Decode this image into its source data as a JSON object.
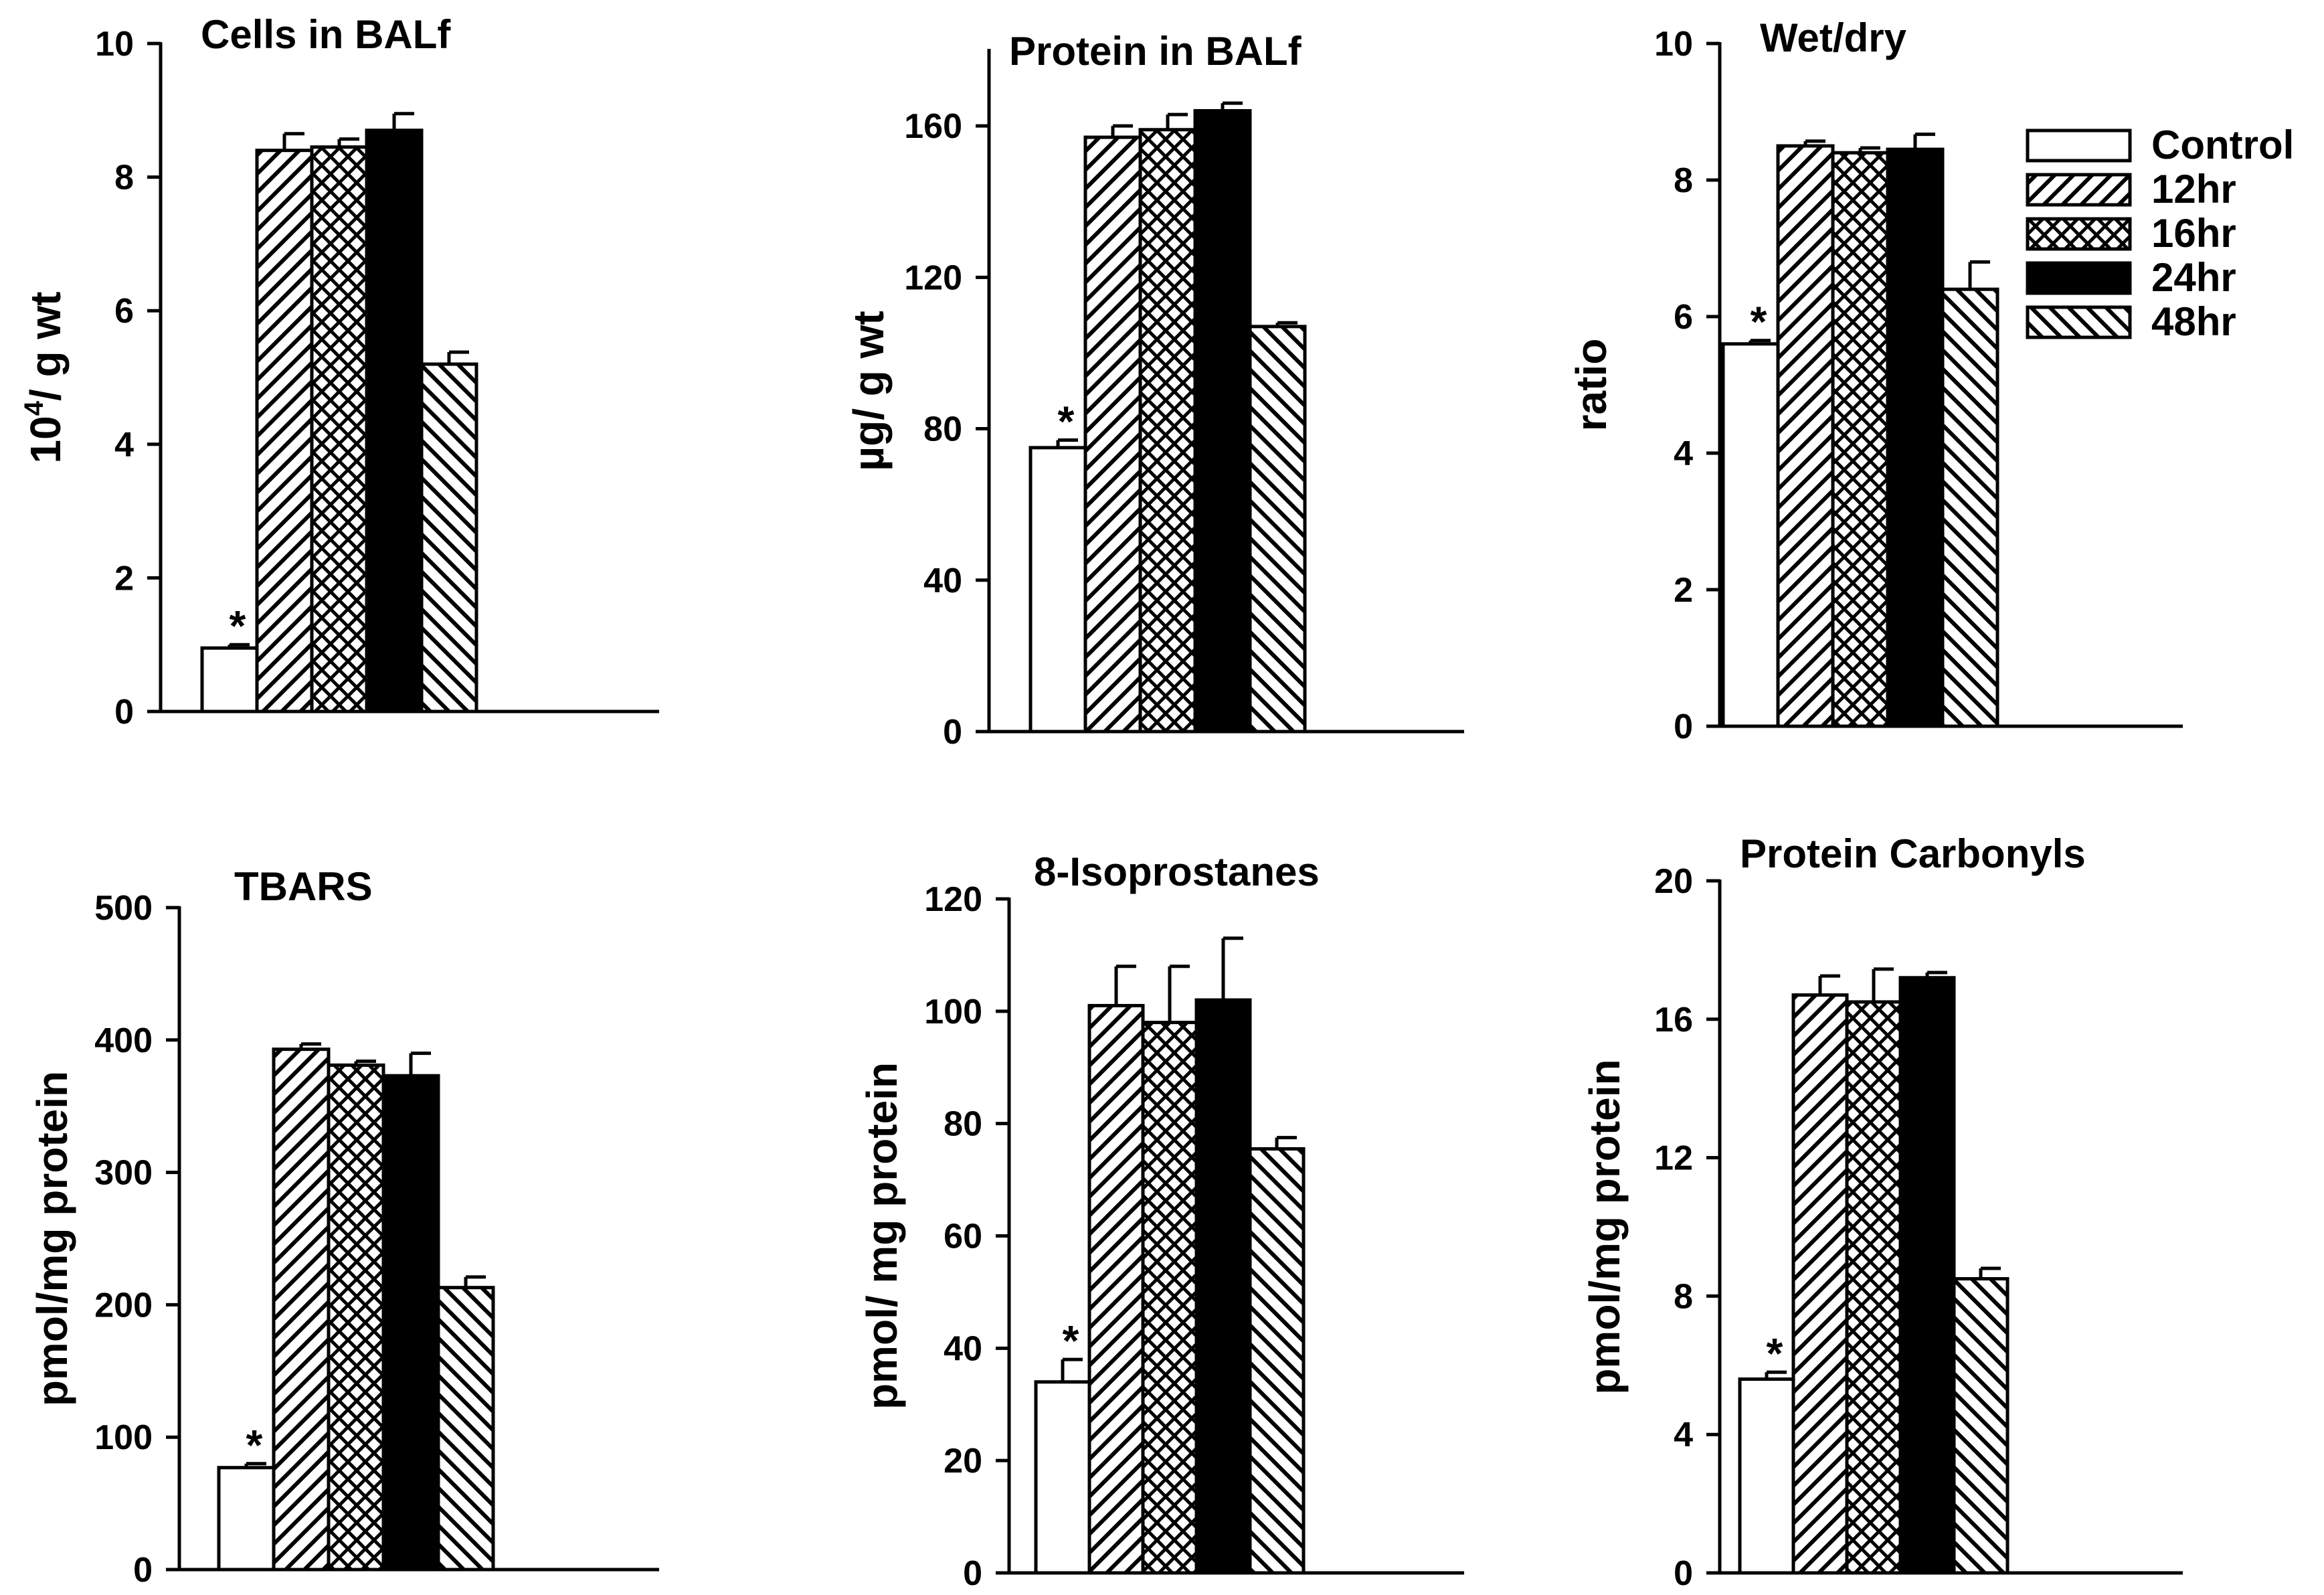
{
  "chart_data": [
    {
      "type": "bar",
      "title": "Cells in BALf",
      "ylabel_base": "10",
      "ylabel_sup": "4",
      "ylabel_rest": "/ g wt",
      "ylabel": "10^4/ g wt",
      "xlabel": "",
      "ylim": [
        0,
        10
      ],
      "yticks": [
        0,
        2,
        4,
        6,
        8,
        10
      ],
      "categories": [
        "Control",
        "12hr",
        "16hr",
        "24hr",
        "48hr"
      ],
      "values": [
        0.95,
        8.4,
        8.45,
        8.7,
        5.2
      ],
      "errors": [
        0.05,
        0.25,
        0.12,
        0.25,
        0.18
      ],
      "significance": [
        "*",
        "",
        "",
        "",
        ""
      ]
    },
    {
      "type": "bar",
      "title": "Protein in BALf",
      "ylabel": "µg/ g wt",
      "xlabel": "",
      "ylim": [
        0,
        180
      ],
      "yticks": [
        0,
        40,
        80,
        120,
        160
      ],
      "categories": [
        "Control",
        "12hr",
        "16hr",
        "24hr",
        "48hr"
      ],
      "values": [
        75,
        157,
        159,
        164,
        107
      ],
      "errors": [
        2,
        3,
        4,
        2,
        1
      ],
      "significance": [
        "*",
        "",
        "",
        "",
        ""
      ]
    },
    {
      "type": "bar",
      "title": "Wet/dry",
      "ylabel": "ratio",
      "xlabel": "",
      "ylim": [
        0,
        10
      ],
      "yticks": [
        0,
        2,
        4,
        6,
        8,
        10
      ],
      "categories": [
        "Control",
        "12hr",
        "16hr",
        "24hr",
        "48hr"
      ],
      "values": [
        5.6,
        8.5,
        8.4,
        8.45,
        6.4
      ],
      "errors": [
        0.05,
        0.07,
        0.07,
        0.22,
        0.4
      ],
      "significance": [
        "*",
        "",
        "",
        "",
        ""
      ]
    },
    {
      "type": "bar",
      "title": "TBARS",
      "ylabel": "pmol/mg protein",
      "xlabel": "",
      "ylim": [
        0,
        500
      ],
      "yticks": [
        0,
        100,
        200,
        300,
        400,
        500
      ],
      "categories": [
        "Control",
        "12hr",
        "16hr",
        "24hr",
        "48hr"
      ],
      "values": [
        77,
        393,
        381,
        373,
        213
      ],
      "errors": [
        3,
        4,
        3,
        17,
        8
      ],
      "significance": [
        "*",
        "",
        "",
        "",
        ""
      ]
    },
    {
      "type": "bar",
      "title": "8-Isoprostanes",
      "ylabel": "pmol/ mg protein",
      "xlabel": "",
      "ylim": [
        0,
        120
      ],
      "yticks": [
        0,
        20,
        40,
        60,
        80,
        100,
        120
      ],
      "categories": [
        "Control",
        "12hr",
        "16hr",
        "24hr",
        "48hr"
      ],
      "values": [
        34,
        101,
        98,
        102,
        75.5
      ],
      "errors": [
        4,
        7,
        10,
        11,
        2
      ],
      "significance": [
        "*",
        "",
        "",
        "",
        ""
      ]
    },
    {
      "type": "bar",
      "title": "Protein Carbonyls",
      "ylabel": "pmol/mg protein",
      "xlabel": "",
      "ylim": [
        0,
        20
      ],
      "yticks": [
        0,
        4,
        8,
        12,
        16,
        20
      ],
      "categories": [
        "Control",
        "12hr",
        "16hr",
        "24hr",
        "48hr"
      ],
      "values": [
        5.6,
        16.7,
        16.5,
        17.2,
        8.5
      ],
      "errors": [
        0.2,
        0.55,
        0.95,
        0.15,
        0.3
      ],
      "significance": [
        "*",
        "",
        "",
        "",
        ""
      ]
    }
  ],
  "legend": {
    "position": "top-right",
    "entries": [
      {
        "label": "Control",
        "pattern": "empty"
      },
      {
        "label": "12hr",
        "pattern": "diag-up"
      },
      {
        "label": "16hr",
        "pattern": "crosshatch"
      },
      {
        "label": "24hr",
        "pattern": "solid"
      },
      {
        "label": "48hr",
        "pattern": "diag-down"
      }
    ]
  },
  "colors": {
    "ink": "#000000",
    "background": "#ffffff"
  }
}
